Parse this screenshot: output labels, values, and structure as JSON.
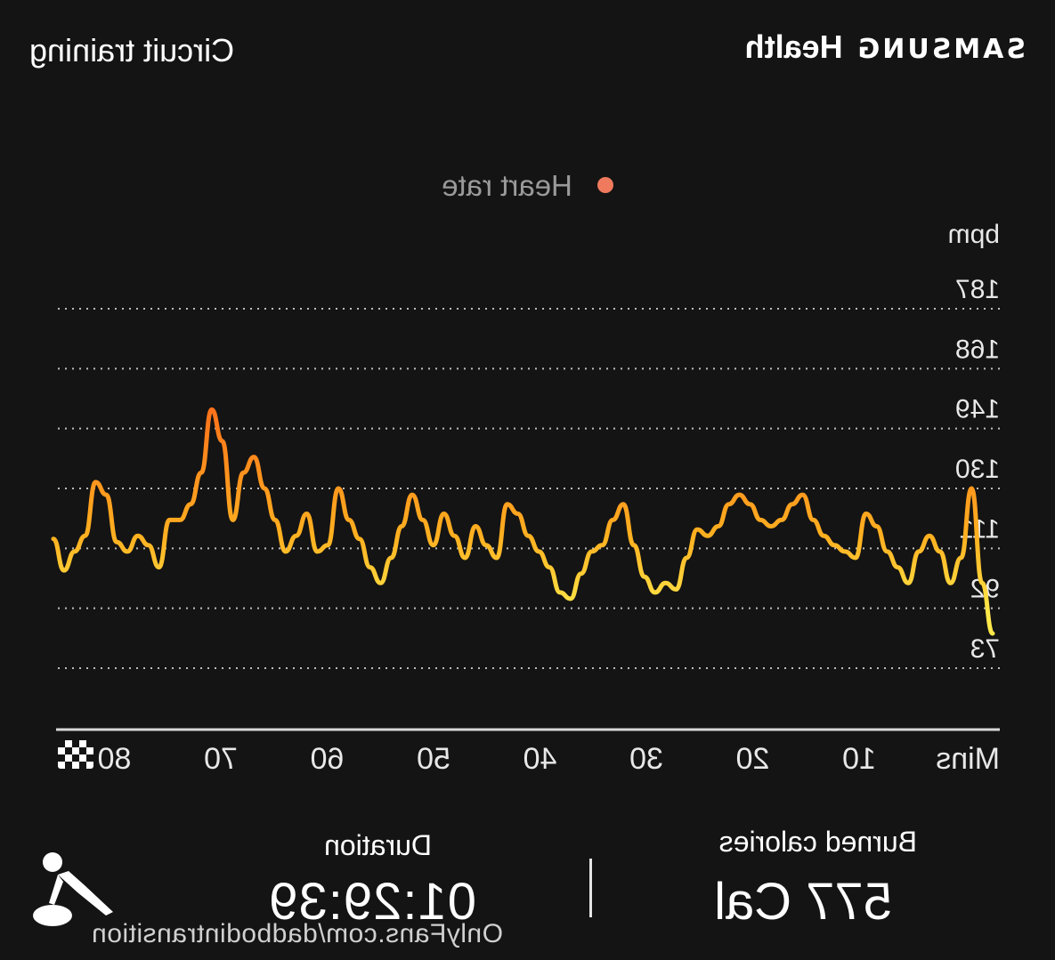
{
  "header": {
    "brand": "SAMSUNG",
    "app": "Health",
    "workout_title": "Circuit training"
  },
  "legend": {
    "label": "Heart rate"
  },
  "chart_data": {
    "type": "line",
    "mirrored": true,
    "series": [
      {
        "name": "Heart rate",
        "gradient_colors": [
          "#ffe94a",
          "#ffb020",
          "#ff6a1a"
        ],
        "x": [
          0,
          1,
          2,
          3,
          4,
          5,
          6,
          7,
          8,
          9,
          10,
          11,
          12,
          13,
          14,
          15,
          16,
          17,
          18,
          19,
          20,
          21,
          22,
          23,
          24,
          25,
          26,
          27,
          28,
          29,
          30,
          31,
          32,
          33,
          34,
          35,
          36,
          37,
          38,
          39,
          40,
          41,
          42,
          43,
          44,
          45,
          46,
          47,
          48,
          49,
          50,
          51,
          52,
          53,
          54,
          55,
          56,
          57,
          58,
          59,
          60,
          61,
          62,
          63,
          64,
          65,
          66,
          67,
          68,
          69,
          70,
          71,
          72,
          73,
          74,
          75,
          76,
          77,
          78,
          79,
          80,
          81,
          82,
          83,
          84,
          85,
          86,
          87,
          88,
          89
        ],
        "values": [
          84,
          100,
          130,
          108,
          100,
          110,
          115,
          110,
          100,
          105,
          110,
          118,
          122,
          108,
          110,
          112,
          115,
          120,
          128,
          125,
          120,
          118,
          120,
          125,
          128,
          125,
          118,
          115,
          117,
          108,
          98,
          100,
          97,
          102,
          112,
          125,
          120,
          112,
          110,
          103,
          95,
          97,
          105,
          110,
          115,
          122,
          125,
          108,
          112,
          118,
          108,
          115,
          122,
          112,
          120,
          128,
          118,
          108,
          100,
          105,
          114,
          120,
          130,
          112,
          110,
          122,
          115,
          110,
          120,
          130,
          140,
          135,
          120,
          145,
          155,
          135,
          125,
          120,
          120,
          105,
          112,
          115,
          110,
          113,
          128,
          132,
          115,
          110,
          104,
          114
        ]
      }
    ],
    "xlabel": "Mins",
    "x_ticks": [
      "10",
      "20",
      "30",
      "40",
      "50",
      "60",
      "70",
      "80"
    ],
    "ylabel": "bpm",
    "y_ticks": [
      "187",
      "168",
      "149",
      "130",
      "111",
      "92",
      "73"
    ],
    "ylim": [
      73,
      187
    ],
    "xlim": [
      0,
      89
    ],
    "grid": true,
    "finish_marker": "checkered-flag"
  },
  "summary": {
    "burned_label": "Burned calories",
    "burned_value": "577 Cal",
    "duration_label": "Duration",
    "duration_value": "01:29:39"
  },
  "watermark": "OnlyFans.com/dadbodintransition",
  "icons": {
    "workout": "circuit-training-figure-icon"
  }
}
